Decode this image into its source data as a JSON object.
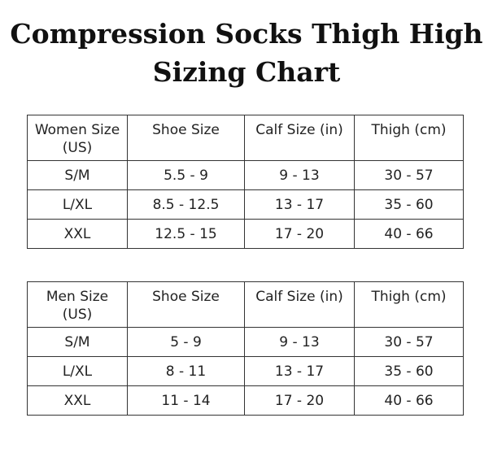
{
  "title": {
    "line1": "Compression Socks Thigh High",
    "line2": "Sizing Chart"
  },
  "women_table": {
    "headers": [
      "Women Size",
      "(US)",
      "Shoe Size",
      "Calf Size (in)",
      "Thigh (cm)"
    ],
    "rows": [
      [
        "S/M",
        "5.5 - 9",
        "9 - 13",
        "30 - 57"
      ],
      [
        "L/XL",
        "8.5 - 12.5",
        "13 - 17",
        "35 - 60"
      ],
      [
        "XXL",
        "12.5 - 15",
        "17 - 20",
        "40 - 66"
      ]
    ]
  },
  "men_table": {
    "headers": [
      "Men Size",
      "(US)",
      "Shoe Size",
      "Calf Size (in)",
      "Thigh (cm)"
    ],
    "rows": [
      [
        "S/M",
        "5 - 9",
        "9 - 13",
        "30 - 57"
      ],
      [
        "L/XL",
        "8 - 11",
        "13 - 17",
        "35 - 60"
      ],
      [
        "XXL",
        "11 - 14",
        "17 - 20",
        "40 - 66"
      ]
    ]
  }
}
